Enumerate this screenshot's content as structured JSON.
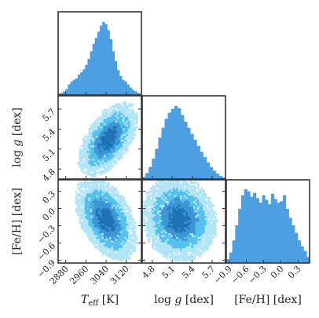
{
  "colors": {
    "hist": "#4c9fe0",
    "levels": [
      "#b3e5f7",
      "#56c2ec",
      "#3c96d6",
      "#1f73b5"
    ]
  },
  "chart_data": {
    "type": "corner",
    "parameters": [
      {
        "id": "teff",
        "label": "T_eff [K]",
        "label_main": "T",
        "label_sub": "eff",
        "label_unit": " [K]",
        "range": [
          2850,
          3180
        ],
        "ticks": [
          2880,
          2960,
          3040,
          3120
        ],
        "tick_labels": [
          "2880",
          "2960",
          "3040",
          "3120"
        ],
        "hist": [
          0.02,
          0.03,
          0.05,
          0.08,
          0.14,
          0.18,
          0.2,
          0.22,
          0.27,
          0.3,
          0.34,
          0.4,
          0.48,
          0.58,
          0.68,
          0.76,
          0.84,
          0.92,
          0.97,
          0.94,
          0.86,
          0.74,
          0.58,
          0.45,
          0.33,
          0.25,
          0.2,
          0.18,
          0.14,
          0.1,
          0.07,
          0.05,
          0.03,
          0.02
        ]
      },
      {
        "id": "logg",
        "label": "log g [dex]",
        "label_main": "log g",
        "label_unit": " [dex]",
        "range": [
          4.65,
          5.9
        ],
        "ticks": [
          4.8,
          5.1,
          5.4,
          5.7
        ],
        "tick_labels": [
          "4.8",
          "5.1",
          "5.4",
          "5.7"
        ],
        "hist": [
          0.03,
          0.08,
          0.16,
          0.27,
          0.4,
          0.55,
          0.68,
          0.8,
          0.88,
          0.93,
          0.97,
          0.94,
          0.85,
          0.76,
          0.68,
          0.6,
          0.52,
          0.44,
          0.36,
          0.29,
          0.22,
          0.16,
          0.11,
          0.07,
          0.04,
          0.02
        ]
      },
      {
        "id": "feh",
        "label": "[Fe/H] [dex]",
        "label_main": "[Fe/H]",
        "label_unit": " [dex]",
        "range": [
          -0.95,
          0.5
        ],
        "ticks": [
          -0.9,
          -0.6,
          -0.3,
          0.0,
          0.3
        ],
        "tick_labels": [
          "−0.9",
          "−0.6",
          "−0.3",
          "0.0",
          "0.3"
        ],
        "hist": [
          0.05,
          0.14,
          0.3,
          0.5,
          0.72,
          0.9,
          0.98,
          0.95,
          0.88,
          0.93,
          0.86,
          0.8,
          0.9,
          0.84,
          0.78,
          0.92,
          0.85,
          0.8,
          0.82,
          0.9,
          0.72,
          0.6,
          0.5,
          0.4,
          0.3,
          0.22,
          0.16,
          0.08
        ]
      }
    ],
    "pairs": [
      {
        "x": "teff",
        "y": "logg",
        "center": [
          3048,
          5.25
        ],
        "sigma": [
          48,
          0.23
        ],
        "rho": 0.55
      },
      {
        "x": "teff",
        "y": "feh",
        "center": [
          3040,
          -0.18
        ],
        "sigma": [
          50,
          0.3
        ],
        "rho": -0.45
      },
      {
        "x": "logg",
        "y": "feh",
        "center": [
          5.2,
          -0.18
        ],
        "sigma": [
          0.23,
          0.3
        ],
        "rho": -0.1
      }
    ]
  }
}
